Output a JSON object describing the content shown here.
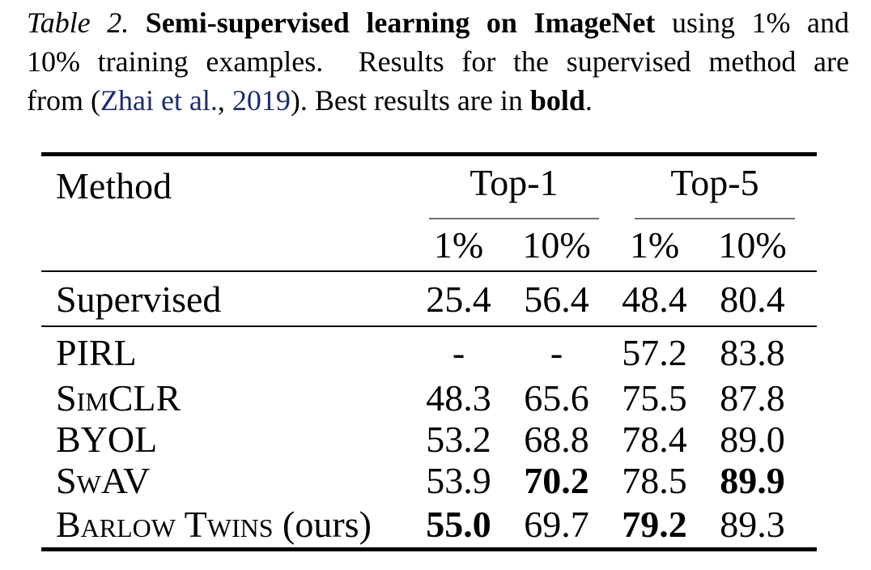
{
  "caption": {
    "line1": {
      "label": "Table 2. ",
      "title": "Semi-supervised learning on ImageNet",
      "rest": " using 1% and"
    },
    "line2": {
      "text": "10% training examples.  Results for the supervised method are"
    },
    "line3": {
      "pre": "from (",
      "cite_author": "Zhai et al.",
      "sep": ", ",
      "cite_year": "2019",
      "mid": "). Best results are in ",
      "bold_word": "bold",
      "end": "."
    }
  },
  "colors": {
    "citation_link": "#1b2d6f",
    "text": "#000000",
    "cmidrule": "#6f6f6f"
  },
  "table": {
    "method_header": "Method",
    "group_headers": [
      "Top-1",
      "Top-5"
    ],
    "sub_headers": [
      "1%",
      "10%",
      "1%",
      "10%"
    ],
    "supervised": {
      "method": "Supervised",
      "cells": [
        {
          "v": "25.4",
          "bold": false
        },
        {
          "v": "56.4",
          "bold": false
        },
        {
          "v": "48.4",
          "bold": false
        },
        {
          "v": "80.4",
          "bold": false
        }
      ]
    },
    "rows": [
      {
        "method": "PIRL",
        "suffix": "",
        "cells": [
          {
            "v": "-",
            "bold": false
          },
          {
            "v": "-",
            "bold": false
          },
          {
            "v": "57.2",
            "bold": false
          },
          {
            "v": "83.8",
            "bold": false
          }
        ]
      },
      {
        "method": "SimCLR",
        "suffix": "",
        "cells": [
          {
            "v": "48.3",
            "bold": false
          },
          {
            "v": "65.6",
            "bold": false
          },
          {
            "v": "75.5",
            "bold": false
          },
          {
            "v": "87.8",
            "bold": false
          }
        ]
      },
      {
        "method": "BYOL",
        "suffix": "",
        "cells": [
          {
            "v": "53.2",
            "bold": false
          },
          {
            "v": "68.8",
            "bold": false
          },
          {
            "v": "78.4",
            "bold": false
          },
          {
            "v": "89.0",
            "bold": false
          }
        ]
      },
      {
        "method": "SwAV",
        "suffix": "",
        "cells": [
          {
            "v": "53.9",
            "bold": false
          },
          {
            "v": "70.2",
            "bold": true
          },
          {
            "v": "78.5",
            "bold": false
          },
          {
            "v": "89.9",
            "bold": true
          }
        ]
      },
      {
        "method": "Barlow Twins",
        "suffix": " (ours)",
        "cells": [
          {
            "v": "55.0",
            "bold": true
          },
          {
            "v": "69.7",
            "bold": false
          },
          {
            "v": "79.2",
            "bold": true
          },
          {
            "v": "89.3",
            "bold": false
          }
        ]
      }
    ]
  }
}
